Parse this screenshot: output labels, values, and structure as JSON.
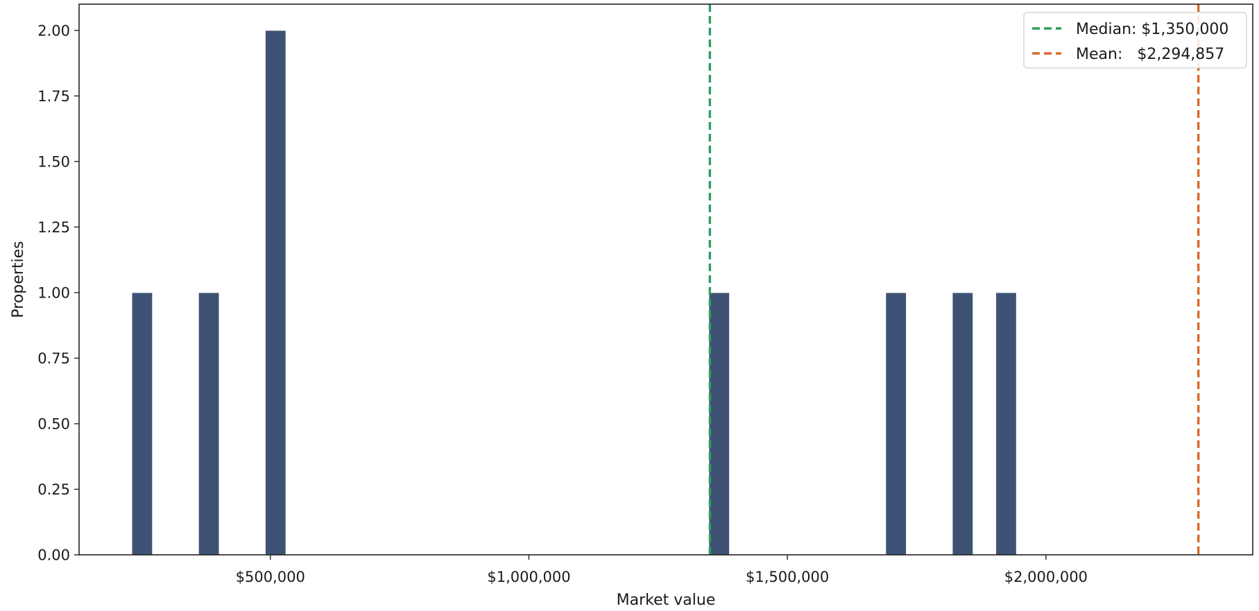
{
  "chart_data": {
    "type": "bar",
    "xlabel": "Market value",
    "ylabel": "Properties",
    "xlim": [
      130000,
      2400000
    ],
    "ylim": [
      0,
      2.1
    ],
    "x_ticks": [
      {
        "value": 500000,
        "label": "$500,000"
      },
      {
        "value": 1000000,
        "label": "$1,000,000"
      },
      {
        "value": 1500000,
        "label": "$1,500,000"
      },
      {
        "value": 2000000,
        "label": "$2,000,000"
      }
    ],
    "y_ticks": [
      {
        "value": 0,
        "label": "0.00"
      },
      {
        "value": 0.25,
        "label": "0.25"
      },
      {
        "value": 0.5,
        "label": "0.50"
      },
      {
        "value": 0.75,
        "label": "0.75"
      },
      {
        "value": 1,
        "label": "1.00"
      },
      {
        "value": 1.25,
        "label": "1.25"
      },
      {
        "value": 1.5,
        "label": "1.50"
      },
      {
        "value": 1.75,
        "label": "1.75"
      },
      {
        "value": 2,
        "label": "2.00"
      }
    ],
    "bins": [
      {
        "x0": 232000,
        "x1": 272000,
        "count": 1
      },
      {
        "x0": 361000,
        "x1": 401000,
        "count": 1
      },
      {
        "x0": 490000,
        "x1": 530000,
        "count": 2
      },
      {
        "x0": 1348000,
        "x1": 1388000,
        "count": 1
      },
      {
        "x0": 1690000,
        "x1": 1730000,
        "count": 1
      },
      {
        "x0": 1819000,
        "x1": 1859000,
        "count": 1
      },
      {
        "x0": 1903000,
        "x1": 1943000,
        "count": 1
      }
    ],
    "reference_lines": [
      {
        "name": "median",
        "value": 1350000,
        "label": "Median: $1,350,000",
        "color": "#2e9e5e"
      },
      {
        "name": "mean",
        "value": 2294857,
        "label": "Mean:   $2,294,857",
        "color": "#d9692a"
      }
    ],
    "bar_color": "#3e5373",
    "grid": false,
    "legend_position": "top-right"
  }
}
